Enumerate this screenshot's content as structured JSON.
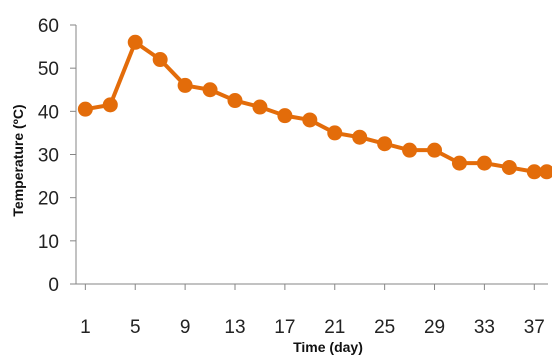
{
  "chart_data": {
    "type": "line",
    "title": "",
    "xlabel": "Time (day)",
    "ylabel": "Temperature (ºC)",
    "ylim": [
      0,
      60
    ],
    "xlim": [
      1,
      38
    ],
    "y_ticks": [
      "0",
      "10",
      "20",
      "30",
      "40",
      "50",
      "60"
    ],
    "x_ticks": [
      "1",
      "5",
      "9",
      "13",
      "17",
      "21",
      "25",
      "29",
      "33",
      "37"
    ],
    "grid": false,
    "legend": "none",
    "series": [
      {
        "color": "#E36C0A",
        "points": [
          {
            "x": 1,
            "y": 40.5
          },
          {
            "x": 3,
            "y": 41.5
          },
          {
            "x": 5,
            "y": 56
          },
          {
            "x": 7,
            "y": 52
          },
          {
            "x": 9,
            "y": 46
          },
          {
            "x": 11,
            "y": 45
          },
          {
            "x": 13,
            "y": 42.5
          },
          {
            "x": 15,
            "y": 41
          },
          {
            "x": 17,
            "y": 39
          },
          {
            "x": 19,
            "y": 38
          },
          {
            "x": 21,
            "y": 35
          },
          {
            "x": 23,
            "y": 34
          },
          {
            "x": 25,
            "y": 32.5
          },
          {
            "x": 27,
            "y": 31
          },
          {
            "x": 29,
            "y": 31
          },
          {
            "x": 31,
            "y": 28
          },
          {
            "x": 33,
            "y": 28
          },
          {
            "x": 35,
            "y": 27
          },
          {
            "x": 37,
            "y": 26
          },
          {
            "x": 38,
            "y": 26
          }
        ]
      }
    ]
  }
}
